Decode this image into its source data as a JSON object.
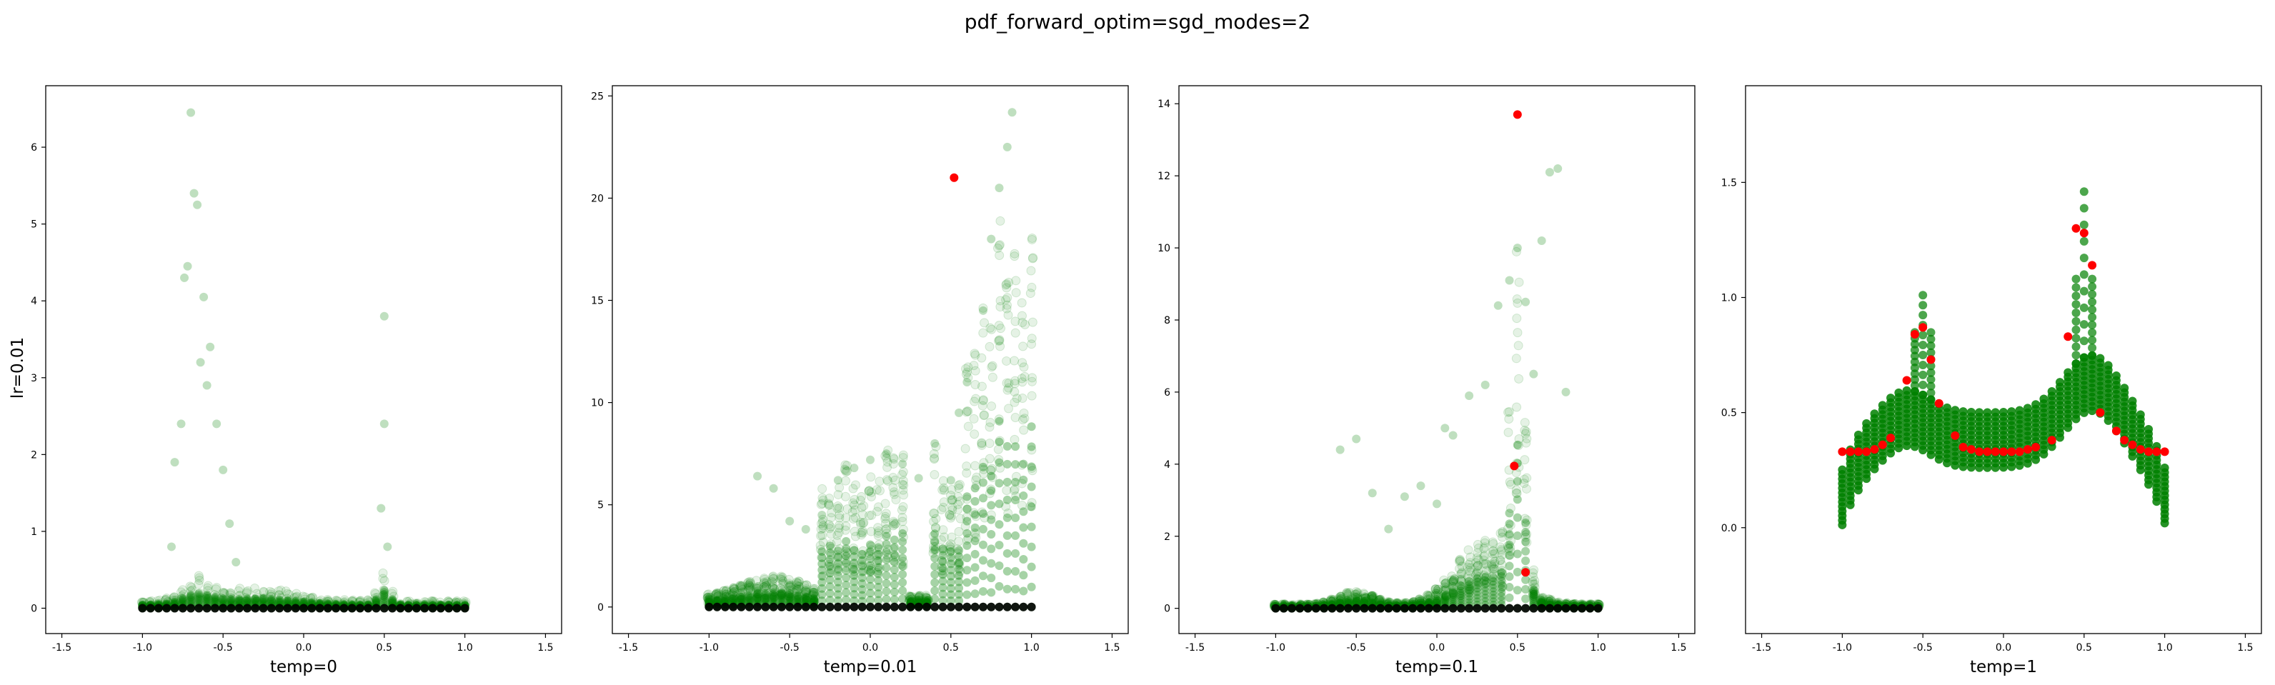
{
  "figure": {
    "title": "pdf_forward_optim=sgd_modes=2",
    "row_label": "lr=0.01"
  },
  "colors": {
    "samples": "#008000",
    "target": "#ff0000",
    "baseline": "#000000"
  },
  "chart_data": [
    {
      "type": "scatter",
      "title": "",
      "xlabel": "temp=0",
      "ylabel": "lr=0.01",
      "xlim": [
        -1.6,
        1.6
      ],
      "ylim": [
        -0.33,
        6.8
      ],
      "xticks": [
        -1.5,
        -1.0,
        -0.5,
        0.0,
        0.5,
        1.0,
        1.5
      ],
      "yticks": [
        0,
        1,
        2,
        3,
        4,
        5,
        6
      ],
      "series": [
        {
          "role": "samples",
          "x": [
            -0.7,
            -0.68,
            -0.72,
            -0.66,
            -0.74,
            -0.62,
            -0.58,
            -0.76,
            -0.8,
            -0.54,
            0.5,
            0.5,
            0.48,
            0.52,
            -0.5,
            -0.46,
            -0.42,
            -0.82,
            -0.64,
            -0.6
          ],
          "y": [
            6.45,
            5.4,
            4.45,
            5.25,
            4.3,
            4.05,
            3.4,
            2.4,
            1.9,
            2.4,
            3.8,
            2.4,
            1.3,
            0.8,
            1.8,
            1.1,
            0.6,
            0.8,
            3.2,
            2.9
          ]
        },
        {
          "role": "target",
          "x": [],
          "y": []
        }
      ]
    },
    {
      "type": "scatter",
      "title": "",
      "xlabel": "temp=0.01",
      "ylabel": "",
      "xlim": [
        -1.6,
        1.6
      ],
      "ylim": [
        -1.3,
        25.5
      ],
      "xticks": [
        -1.5,
        -1.0,
        -0.5,
        0.0,
        0.5,
        1.0,
        1.5
      ],
      "yticks": [
        0,
        5,
        10,
        15,
        20,
        25
      ],
      "series": [
        {
          "role": "samples",
          "x": [
            -0.7,
            -0.6,
            -0.5,
            -0.4,
            -0.3,
            -0.2,
            -0.1,
            0.0,
            0.1,
            0.2,
            0.3,
            0.4,
            0.5,
            0.55,
            0.6,
            0.7,
            0.75,
            0.8,
            0.85,
            0.88
          ],
          "y": [
            6.4,
            5.8,
            4.2,
            3.8,
            4.5,
            6.2,
            6.8,
            7.2,
            7.5,
            7.0,
            6.3,
            8.0,
            6.2,
            9.5,
            11.0,
            14.5,
            18.0,
            20.5,
            22.5,
            24.2
          ]
        },
        {
          "role": "target",
          "x": [
            0.52
          ],
          "y": [
            21.0
          ]
        }
      ]
    },
    {
      "type": "scatter",
      "title": "",
      "xlabel": "temp=0.1",
      "ylabel": "",
      "xlim": [
        -1.6,
        1.6
      ],
      "ylim": [
        -0.7,
        14.5
      ],
      "xticks": [
        -1.5,
        -1.0,
        -0.5,
        0.0,
        0.5,
        1.0,
        1.5
      ],
      "yticks": [
        0,
        2,
        4,
        6,
        8,
        10,
        12,
        14
      ],
      "series": [
        {
          "role": "samples",
          "x": [
            -0.6,
            -0.5,
            -0.4,
            -0.3,
            -0.2,
            -0.1,
            0.0,
            0.05,
            0.1,
            0.2,
            0.3,
            0.38,
            0.45,
            0.5,
            0.55,
            0.6,
            0.65,
            0.7,
            0.75,
            0.8
          ],
          "y": [
            4.4,
            4.7,
            3.2,
            2.2,
            3.1,
            3.4,
            2.9,
            5.0,
            4.8,
            5.9,
            6.2,
            8.4,
            9.1,
            10.0,
            8.5,
            6.5,
            10.2,
            12.1,
            12.2,
            6.0
          ]
        },
        {
          "role": "target",
          "x": [
            0.5,
            0.48,
            0.55
          ],
          "y": [
            13.7,
            3.95,
            1.0
          ]
        }
      ]
    },
    {
      "type": "scatter",
      "title": "",
      "xlabel": "temp=1",
      "ylabel": "",
      "xlim": [
        -1.6,
        1.6
      ],
      "ylim": [
        -0.46,
        1.92
      ],
      "xticks": [
        -1.5,
        -1.0,
        -0.5,
        0.0,
        0.5,
        1.0,
        1.5
      ],
      "yticks": [
        0.0,
        0.5,
        1.0,
        1.5
      ],
      "series": [
        {
          "role": "target",
          "x": [
            -1.0,
            -0.95,
            -0.9,
            -0.85,
            -0.8,
            -0.75,
            -0.7,
            -0.6,
            -0.55,
            -0.5,
            -0.45,
            -0.4,
            -0.3,
            -0.25,
            -0.2,
            -0.15,
            -0.1,
            -0.05,
            0.0,
            0.05,
            0.1,
            0.15,
            0.2,
            0.3,
            0.4,
            0.45,
            0.5,
            0.55,
            0.6,
            0.7,
            0.75,
            0.8,
            0.85,
            0.9,
            0.95,
            1.0
          ],
          "y": [
            0.33,
            0.33,
            0.33,
            0.33,
            0.34,
            0.36,
            0.39,
            0.64,
            0.84,
            0.87,
            0.73,
            0.54,
            0.4,
            0.35,
            0.34,
            0.33,
            0.33,
            0.33,
            0.33,
            0.33,
            0.33,
            0.34,
            0.35,
            0.38,
            0.83,
            1.3,
            1.28,
            1.14,
            0.5,
            0.42,
            0.38,
            0.36,
            0.34,
            0.33,
            0.33,
            0.33
          ]
        }
      ]
    }
  ]
}
